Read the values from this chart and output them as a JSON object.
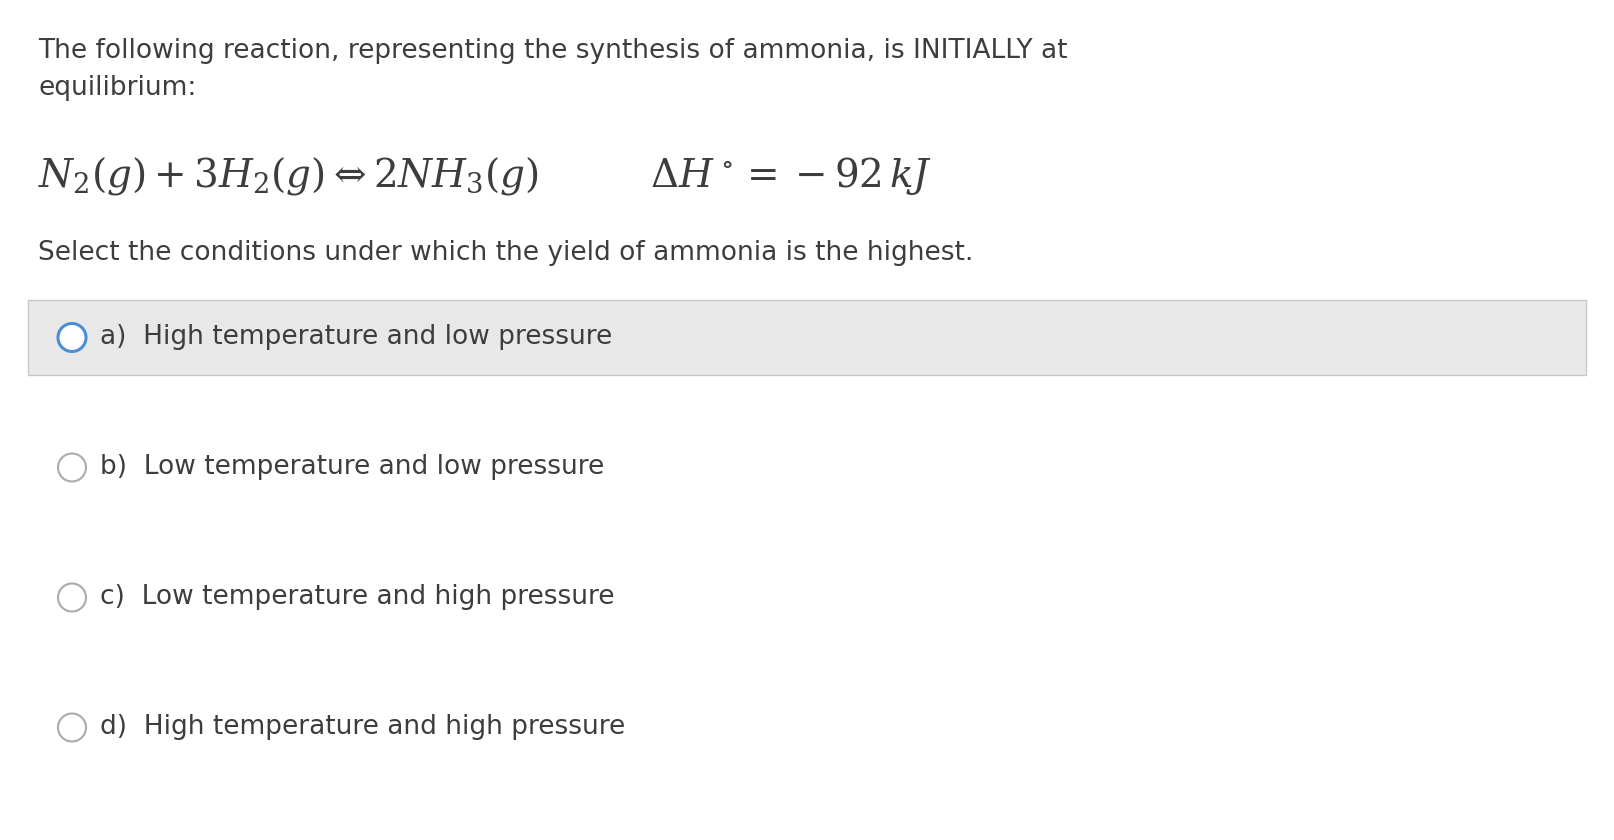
{
  "bg_color": "#ffffff",
  "text_color": "#3d3d3d",
  "title_line1": "The following reaction, representing the synthesis of ammonia, is INITIALLY at",
  "title_line2": "equilibrium:",
  "question": "Select the conditions under which the yield of ammonia is the highest.",
  "options": [
    "a)  High temperature and low pressure",
    "b)  Low temperature and low pressure",
    "c)  Low temperature and high pressure",
    "d)  High temperature and high pressure"
  ],
  "selected_option": 0,
  "option_bg_color": "#e8e8e8",
  "option_border_color": "#c8c8c8",
  "radio_color_selected": "#4a8fd4",
  "radio_color_unselected": "#aaaaaa",
  "font_size_body": 19,
  "font_size_equation": 28,
  "font_size_option": 19,
  "fig_width": 16.14,
  "fig_height": 8.4,
  "dpi": 100
}
